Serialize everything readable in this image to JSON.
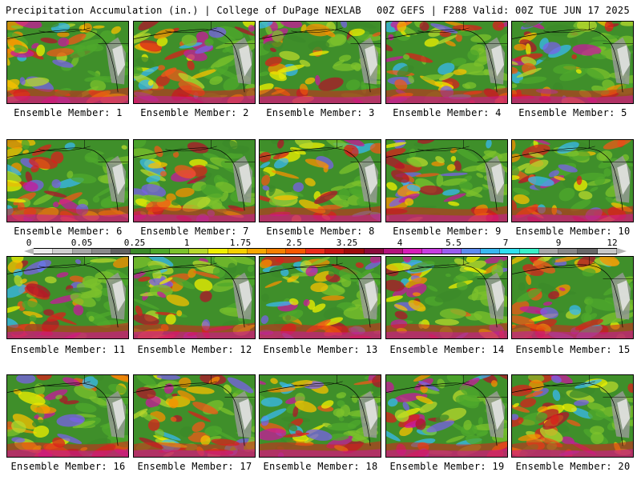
{
  "header": {
    "title_left": "Precipitation Accumulation (in.) | College of DuPage NEXLAB",
    "title_right": "00Z GEFS | F288 Valid: 00Z TUE JUN 17 2025"
  },
  "member_label_prefix": "Ensemble Member: ",
  "members": [
    "1",
    "2",
    "3",
    "4",
    "5",
    "6",
    "7",
    "8",
    "9",
    "10",
    "11",
    "12",
    "13",
    "14",
    "15",
    "16",
    "17",
    "18",
    "19",
    "20"
  ],
  "colorbar": {
    "labels": [
      "0",
      "0.05",
      "0.25",
      "1",
      "1.75",
      "2.5",
      "3.25",
      "4",
      "5.5",
      "7",
      "9",
      "12"
    ],
    "colors": [
      "#ececec",
      "#d0d0d0",
      "#a8a8a8",
      "#8a8a8a",
      "#626262",
      "#3c8a2a",
      "#4fa82c",
      "#7cc22c",
      "#b8d82c",
      "#f0f000",
      "#f7d000",
      "#f8a800",
      "#f88000",
      "#f85800",
      "#ec2c1c",
      "#c81414",
      "#a00c0c",
      "#8c0a3c",
      "#b4127c",
      "#d81cb8",
      "#c83ce0",
      "#9a5cf0",
      "#5c8cf0",
      "#38b8f0",
      "#30e0f0",
      "#38f0c8",
      "#a8a8a8",
      "#888888",
      "#686868",
      "#c8c8c8"
    ]
  }
}
